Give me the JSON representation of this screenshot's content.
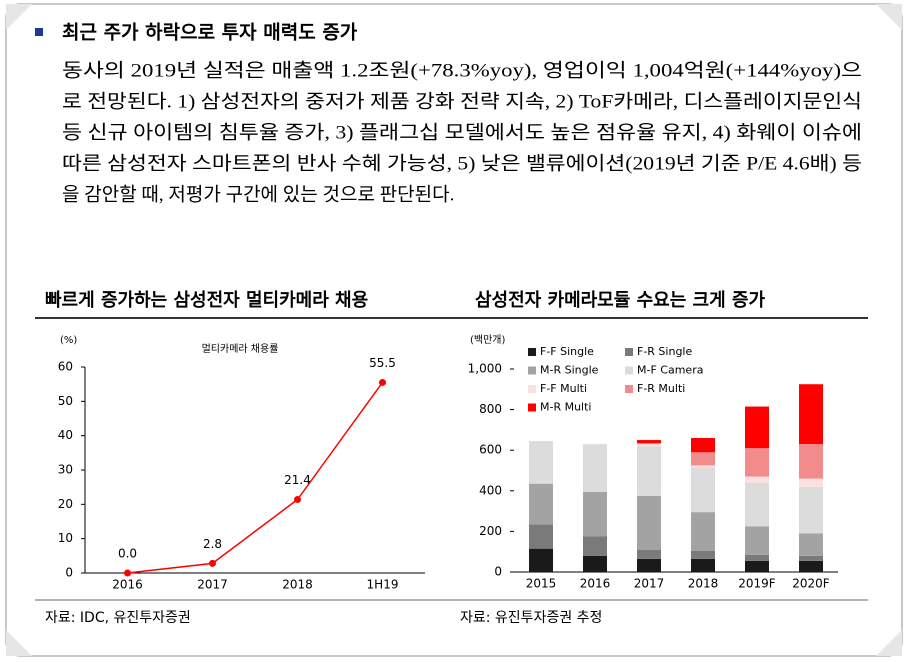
{
  "heading": "최근 주가 하락으로 투자 매력도 증가",
  "paragraph": [
    "동사의 2019년 실적은 매출액 1.2조원(+78.3%yoy), 영업이익 1,004억원(+144%yoy)으",
    "로 전망된다. 1) 삼성전자의 중저가 제품 강화 전략 지속, 2) ToF카메라, 디스플레이지문인식",
    "등 신규 아이템의 침투율 증가, 3) 플래그십 모델에서도 높은 점유율 유지, 4) 화웨이 이슈에",
    "따른 삼성전자 스마트폰의 반사 수혜 가능성, 5) 낮은 밸류에이션(2019년 기준 P/E 4.6배) 등",
    "을 감안할 때, 저평가 구간에 있는 것으로 판단된다."
  ],
  "chart_data": [
    {
      "type": "line",
      "title": "빠르게 증가하는 삼성전자 멀티카메라 채용",
      "unit": "(%)",
      "categories": [
        "2016",
        "2017",
        "2018",
        "1H19"
      ],
      "series": [
        {
          "name": "멀티카메라 채용률",
          "color": "#ff0000",
          "values": [
            0.0,
            2.8,
            21.4,
            55.5
          ],
          "value_labels": [
            "0.0",
            "2.8",
            "21.4",
            "55.5"
          ]
        }
      ],
      "ylim": [
        0,
        60
      ],
      "yticks": [
        0,
        10,
        20,
        30,
        40,
        50,
        60
      ],
      "grid": false,
      "source": "자료: IDC, 유진투자증권"
    },
    {
      "type": "stacked_bar",
      "title": "삼성전자 카메라모듈 수요는 크게 증가",
      "unit": "(백만개)",
      "categories": [
        "2015",
        "2016",
        "2017",
        "2018",
        "2019F",
        "2020F"
      ],
      "series": [
        {
          "name": "F-F Single",
          "color": "#1a1a1a",
          "values": [
            115,
            80,
            65,
            65,
            55,
            55
          ]
        },
        {
          "name": "F-R Single",
          "color": "#7a7a7a",
          "values": [
            120,
            95,
            45,
            40,
            30,
            25
          ]
        },
        {
          "name": "M-R Single",
          "color": "#a3a3a3",
          "values": [
            200,
            220,
            265,
            190,
            140,
            110
          ]
        },
        {
          "name": "M-F Camera",
          "color": "#dcdcdc",
          "values": [
            210,
            235,
            245,
            220,
            215,
            230
          ]
        },
        {
          "name": "F-F Multi",
          "color": "#fde0e0",
          "values": [
            0,
            0,
            10,
            10,
            30,
            40
          ]
        },
        {
          "name": "F-R Multi",
          "color": "#f28b8b",
          "values": [
            0,
            0,
            5,
            65,
            140,
            170
          ]
        },
        {
          "name": "M-R Multi",
          "color": "#ff0000",
          "values": [
            0,
            0,
            15,
            70,
            205,
            295
          ]
        }
      ],
      "ylim": [
        0,
        1000
      ],
      "yticks": [
        0,
        200,
        400,
        600,
        800,
        {
          "value": 1000,
          "label": "1,000"
        }
      ],
      "grid": false,
      "source": "자료: 유진투자증권 추정"
    }
  ]
}
